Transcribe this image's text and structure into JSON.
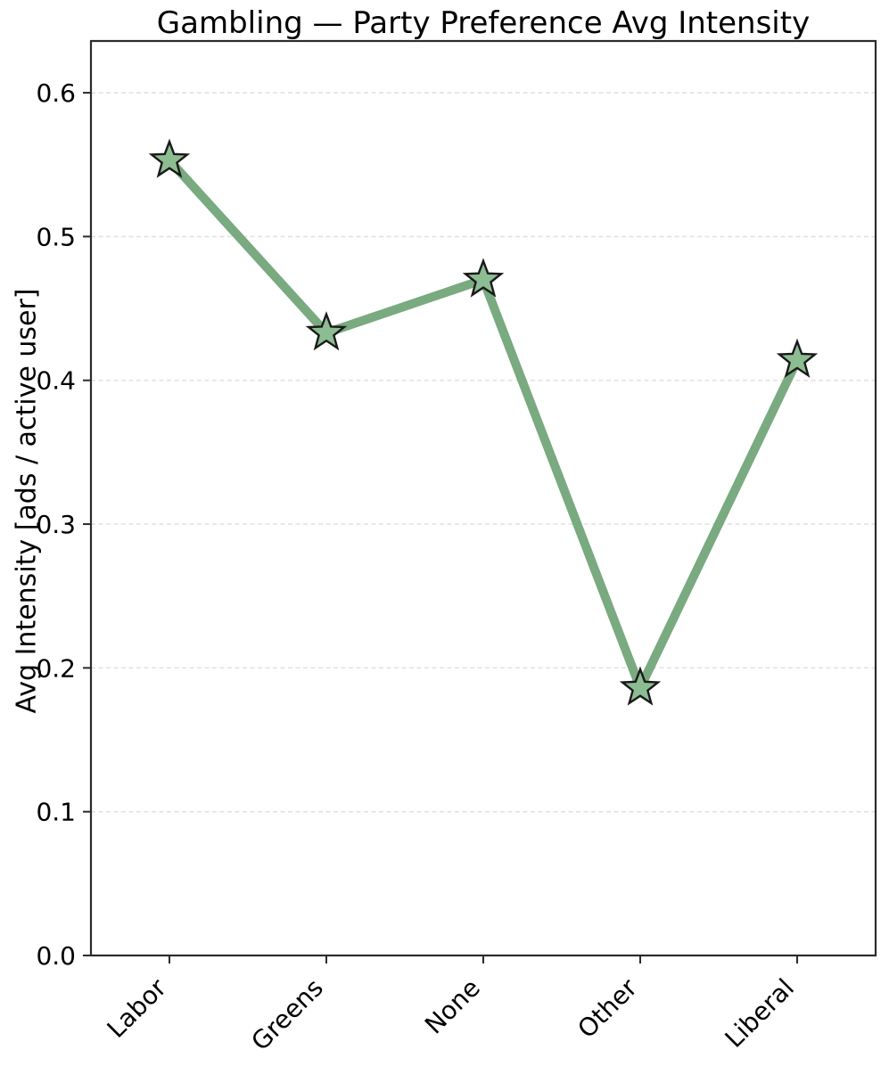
{
  "chart_data": {
    "type": "line",
    "title": "Gambling — Party Preference Avg Intensity",
    "xlabel": "",
    "ylabel": "Avg Intensity [ads / active user]",
    "categories": [
      "Labor",
      "Greens",
      "None",
      "Other",
      "Liberal"
    ],
    "series": [
      {
        "name": "Avg Intensity",
        "values": [
          0.553,
          0.433,
          0.47,
          0.186,
          0.414
        ]
      }
    ],
    "ylim": [
      0.0,
      0.636
    ],
    "yticks": [
      0.0,
      0.1,
      0.2,
      0.3,
      0.4,
      0.5,
      0.6
    ],
    "ytick_labels": [
      "0.0",
      "0.1",
      "0.2",
      "0.3",
      "0.4",
      "0.5",
      "0.6"
    ],
    "x_tick_rotation_deg": 45,
    "grid": "horizontal-dashed",
    "legend": "none",
    "marker": "star",
    "colors": {
      "line": "#79aa80",
      "marker_fill": "#8cbd92",
      "marker_edge": "#1a1a1a",
      "grid": "#e2e2e2",
      "spine": "#2b2b2b",
      "text": "#000000",
      "background": "#ffffff"
    }
  }
}
